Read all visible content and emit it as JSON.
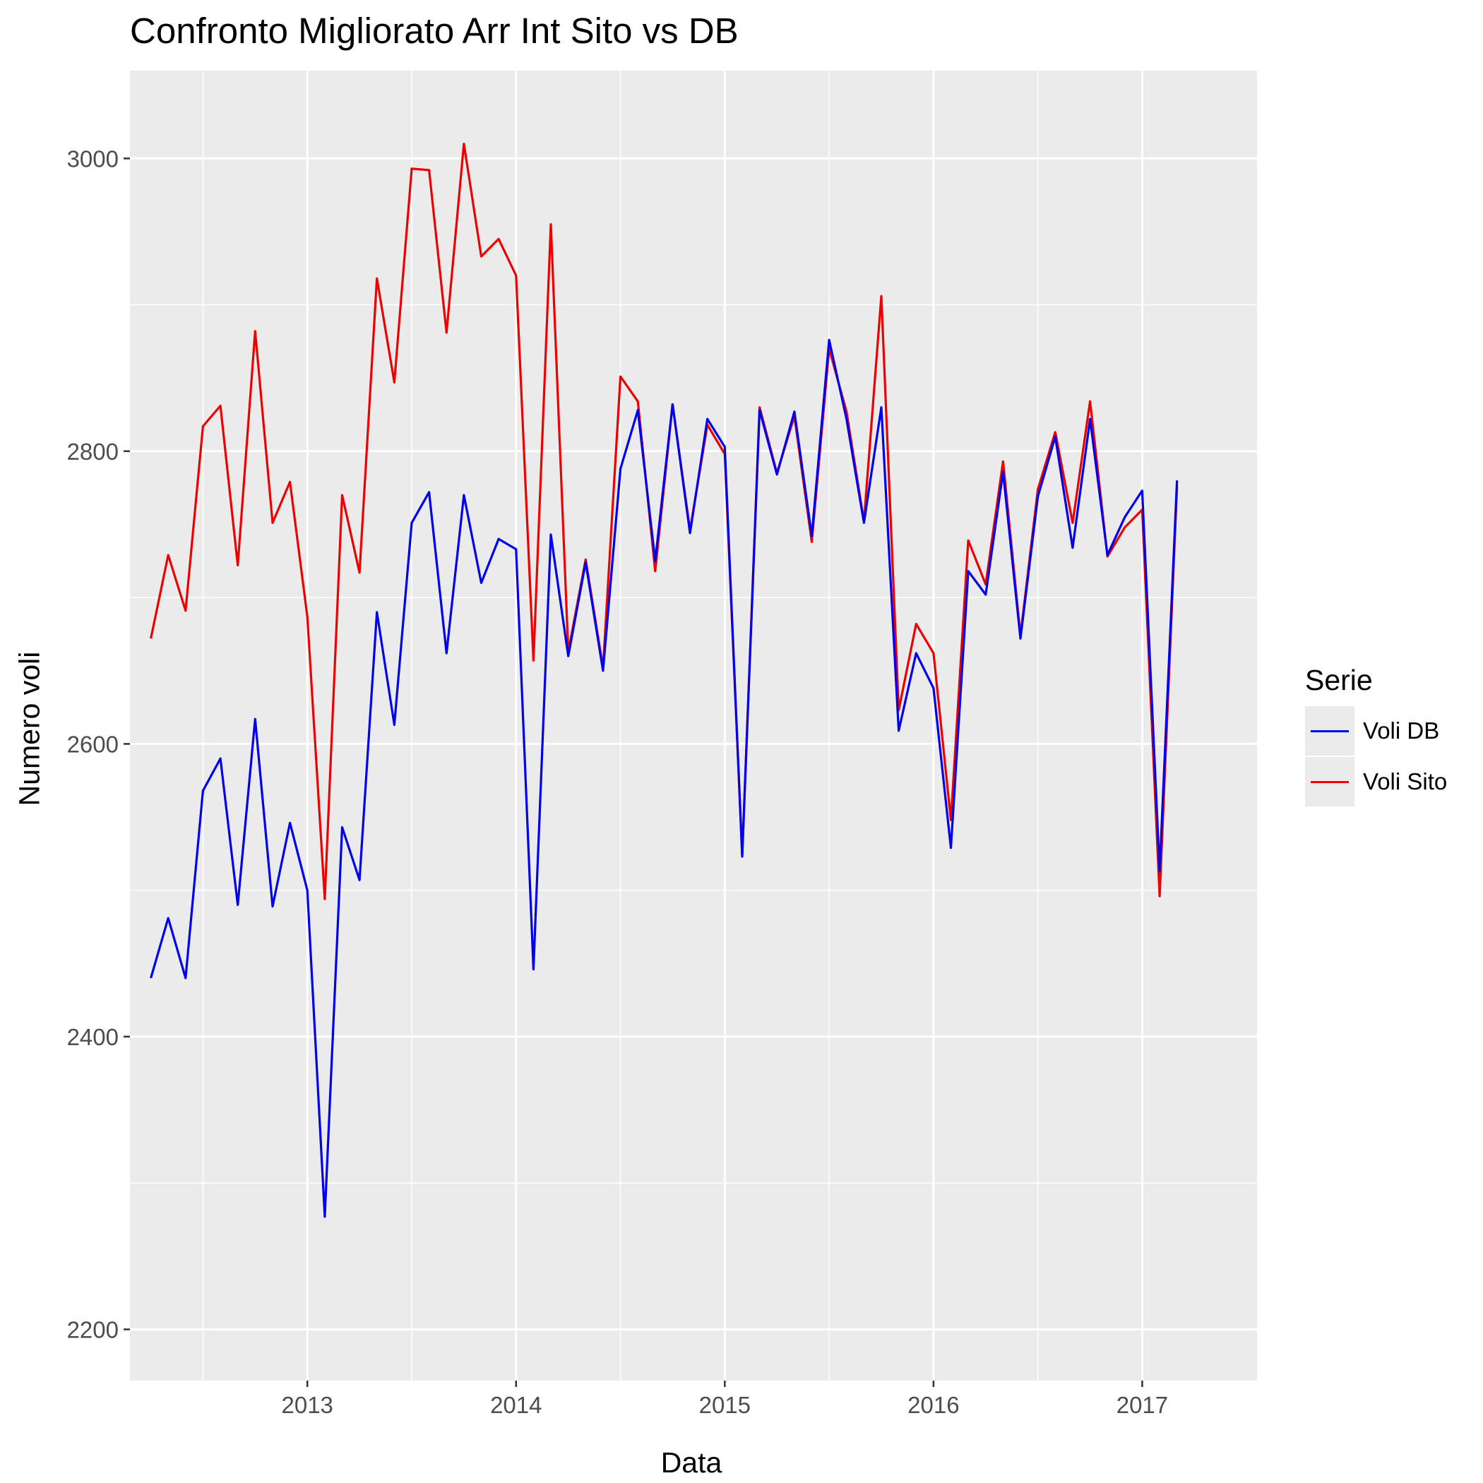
{
  "chart_data": {
    "type": "line",
    "title": "Confronto Migliorato Arr Int Sito vs DB",
    "xlabel": "Data",
    "ylabel": "Numero voli",
    "ylim": [
      2165,
      3060
    ],
    "yticks": [
      2200,
      2400,
      2600,
      2800,
      3000
    ],
    "xlim": [
      2012.15,
      2017.55
    ],
    "xticks": [
      {
        "value": 2013,
        "label": "2013"
      },
      {
        "value": 2014,
        "label": "2014"
      },
      {
        "value": 2015,
        "label": "2015"
      },
      {
        "value": 2016,
        "label": "2016"
      },
      {
        "value": 2017,
        "label": "2017"
      }
    ],
    "grid": true,
    "legend": {
      "title": "Serie",
      "position": "right"
    },
    "x": [
      "2012-04",
      "2012-05",
      "2012-06",
      "2012-07",
      "2012-08",
      "2012-09",
      "2012-10",
      "2012-11",
      "2012-12",
      "2013-01",
      "2013-02",
      "2013-03",
      "2013-04",
      "2013-05",
      "2013-06",
      "2013-07",
      "2013-08",
      "2013-09",
      "2013-10",
      "2013-11",
      "2013-12",
      "2014-01",
      "2014-02",
      "2014-03",
      "2014-04",
      "2014-05",
      "2014-06",
      "2014-07",
      "2014-08",
      "2014-09",
      "2014-10",
      "2014-11",
      "2014-12",
      "2015-01",
      "2015-02",
      "2015-03",
      "2015-04",
      "2015-05",
      "2015-06",
      "2015-07",
      "2015-08",
      "2015-09",
      "2015-10",
      "2015-11",
      "2015-12",
      "2016-01",
      "2016-02",
      "2016-03",
      "2016-04",
      "2016-05",
      "2016-06",
      "2016-07",
      "2016-08",
      "2016-09",
      "2016-10",
      "2016-11",
      "2016-12",
      "2017-01",
      "2017-02",
      "2017-03"
    ],
    "series": [
      {
        "name": "Voli DB",
        "color": "#0000ee",
        "values": [
          2440,
          2481,
          2440,
          2568,
          2590,
          2490,
          2617,
          2489,
          2546,
          2500,
          2277,
          2543,
          2507,
          2690,
          2613,
          2751,
          2772,
          2662,
          2770,
          2710,
          2740,
          2733,
          2446,
          2743,
          2660,
          2724,
          2650,
          2788,
          2828,
          2725,
          2832,
          2744,
          2822,
          2803,
          2523,
          2828,
          2784,
          2827,
          2742,
          2876,
          2822,
          2751,
          2830,
          2609,
          2662,
          2638,
          2529,
          2718,
          2702,
          2786,
          2672,
          2769,
          2810,
          2734,
          2822,
          2729,
          2755,
          2773,
          2513,
          2780
        ]
      },
      {
        "name": "Voli Sito",
        "color": "#ee0000",
        "values": [
          2672,
          2729,
          2691,
          2817,
          2831,
          2722,
          2882,
          2751,
          2779,
          2687,
          2494,
          2770,
          2717,
          2918,
          2847,
          2993,
          2992,
          2881,
          3010,
          2933,
          2945,
          2920,
          2657,
          2955,
          2663,
          2726,
          2652,
          2851,
          2834,
          2718,
          2832,
          2746,
          2818,
          2798,
          2524,
          2830,
          2785,
          2824,
          2738,
          2870,
          2827,
          2752,
          2906,
          2623,
          2682,
          2662,
          2548,
          2739,
          2709,
          2793,
          2674,
          2774,
          2813,
          2751,
          2834,
          2728,
          2748,
          2760,
          2496,
          2776
        ]
      }
    ]
  }
}
